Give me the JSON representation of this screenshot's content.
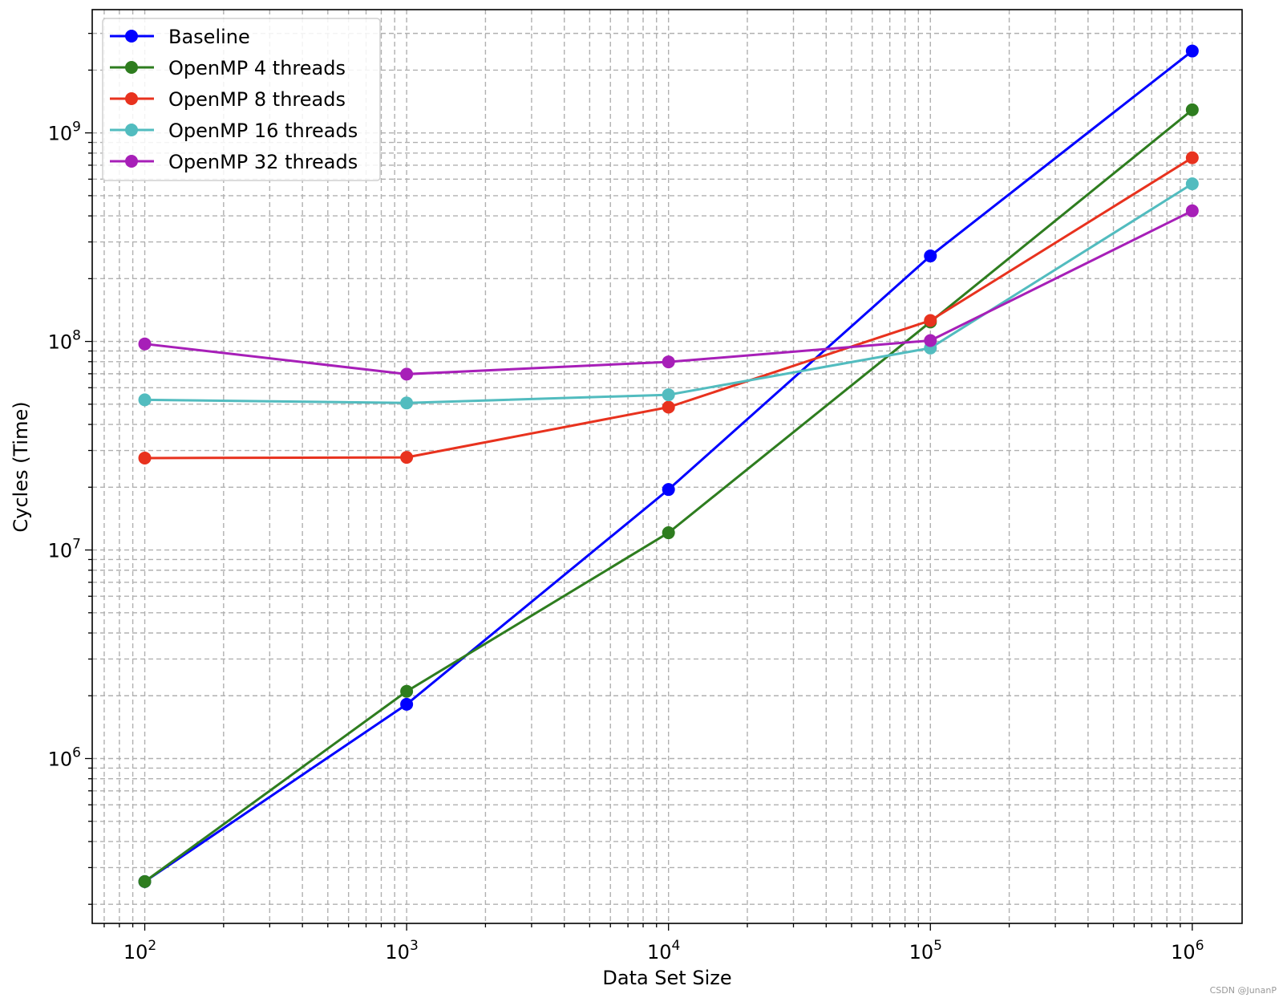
{
  "chart_data": {
    "type": "line",
    "title": "",
    "xlabel": "Data Set Size",
    "ylabel": "Cycles (Time)",
    "xscale": "log",
    "yscale": "log",
    "xlim": [
      63,
      1550000
    ],
    "ylim": [
      162000,
      3900000000
    ],
    "x": [
      100,
      1000,
      10000,
      100000,
      1000000
    ],
    "x_ticks": [
      {
        "base": "10",
        "exp": "2",
        "value": 100
      },
      {
        "base": "10",
        "exp": "3",
        "value": 1000
      },
      {
        "base": "10",
        "exp": "4",
        "value": 10000
      },
      {
        "base": "10",
        "exp": "5",
        "value": 100000
      },
      {
        "base": "10",
        "exp": "6",
        "value": 1000000
      }
    ],
    "y_ticks": [
      {
        "base": "10",
        "exp": "6",
        "value": 1000000
      },
      {
        "base": "10",
        "exp": "7",
        "value": 10000000
      },
      {
        "base": "10",
        "exp": "8",
        "value": 100000000
      },
      {
        "base": "10",
        "exp": "9",
        "value": 1000000000
      }
    ],
    "grid": true,
    "grid_style": "dashed, major and minor",
    "legend_position": "top-left",
    "marker": "circle",
    "series": [
      {
        "name": "Baseline",
        "color": "#0000ff",
        "values": [
          257000,
          1820000,
          19500000,
          257000000,
          2470000000
        ]
      },
      {
        "name": "OpenMP 4 threads",
        "color": "#2e7d1f",
        "values": [
          257000,
          2100000,
          12100000,
          124000000,
          1290000000
        ]
      },
      {
        "name": "OpenMP 8 threads",
        "color": "#e8321e",
        "values": [
          27600000,
          27800000,
          48400000,
          126000000,
          760000000
        ]
      },
      {
        "name": "OpenMP 16 threads",
        "color": "#52bcbf",
        "values": [
          52500000,
          50700000,
          55500000,
          93000000,
          570000000
        ]
      },
      {
        "name": "OpenMP 32 threads",
        "color": "#a71fb8",
        "values": [
          97300000,
          69700000,
          79800000,
          101000000,
          423000000
        ]
      }
    ]
  },
  "watermark": "CSDN @JunanP"
}
